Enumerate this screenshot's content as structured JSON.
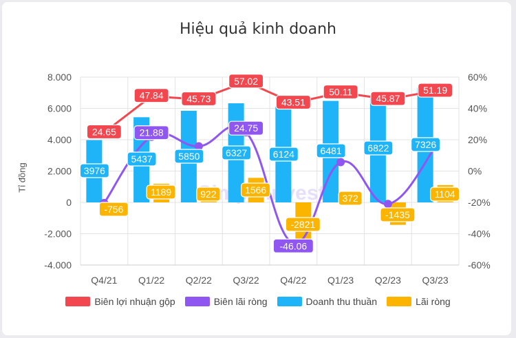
{
  "chart_data": {
    "type": "bar",
    "title": "Hiệu quả kinh doanh",
    "ylabel": "Tỉ đồng",
    "categories": [
      "Q4/21",
      "Q1/22",
      "Q2/22",
      "Q3/22",
      "Q4/22",
      "Q1/23",
      "Q2/23",
      "Q3/23"
    ],
    "ylim": [
      -4000,
      8000
    ],
    "yticks": [
      "-4.000",
      "-2.000",
      "0",
      "2.000",
      "4.000",
      "6.000",
      "8.000"
    ],
    "y2lim": [
      -60,
      60
    ],
    "y2ticks": [
      "-60%",
      "-40%",
      "-20%",
      "0%",
      "20%",
      "40%",
      "60%"
    ],
    "series": [
      {
        "name": "Biên lợi nhuận gộp",
        "kind": "line",
        "axis": "right",
        "color": "#f2474f",
        "values": [
          24.65,
          47.84,
          45.73,
          57.02,
          43.51,
          50.11,
          45.87,
          51.19
        ],
        "labels": [
          "24.65",
          "47.84",
          "45.73",
          "57.02",
          "43.51",
          "50.11",
          "45.87",
          "51.19"
        ]
      },
      {
        "name": "Biên lãi ròng",
        "kind": "line",
        "axis": "right",
        "color": "#8f56f2",
        "values": [
          -20.4,
          21.88,
          15.8,
          24.75,
          -46.06,
          5.7,
          -21.0,
          15.07
        ],
        "labels": [
          "",
          "21.88",
          "",
          "24.75",
          "-46.06",
          "",
          "",
          ""
        ]
      },
      {
        "name": "Doanh thu thuần",
        "kind": "bar",
        "axis": "left",
        "color": "#1eb4f7",
        "values": [
          3976,
          5437,
          5850,
          6327,
          6124,
          6481,
          6822,
          7326
        ],
        "labels": [
          "3976",
          "5437",
          "5850",
          "6327",
          "6124",
          "6481",
          "6822",
          "7326"
        ]
      },
      {
        "name": "Lãi ròng",
        "kind": "bar",
        "axis": "left",
        "color": "#fbb500",
        "values": [
          -756,
          1189,
          922,
          1566,
          -2821,
          372,
          -1435,
          1104
        ],
        "labels": [
          "-756",
          "1189",
          "922",
          "1566",
          "-2821",
          "372",
          "-1435",
          "1104"
        ]
      }
    ],
    "legend": "bottom",
    "grid": true
  },
  "watermark": "SimpleInvest"
}
